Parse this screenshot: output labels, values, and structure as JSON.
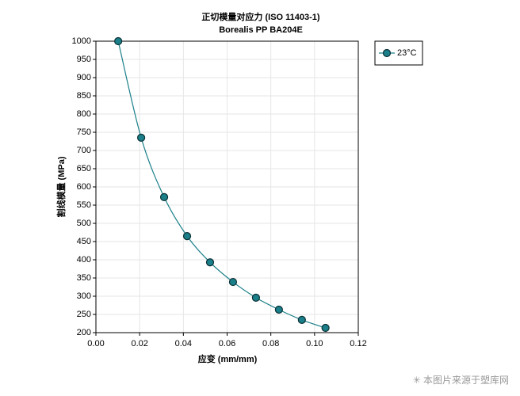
{
  "chart_data": {
    "type": "line",
    "title": "正切模量对应力 (ISO 11403-1)",
    "subtitle": "Borealis PP BA204E",
    "x_label": "应变 (mm/mm)",
    "y_label": "割线模量 (MPa)",
    "x": [
      0.0102,
      0.0207,
      0.0312,
      0.0417,
      0.0522,
      0.0627,
      0.0732,
      0.0837,
      0.0942,
      0.105
    ],
    "series": [
      {
        "name": "23°C",
        "color": "#1a7f89",
        "values": [
          1000,
          735,
          572,
          465,
          393,
          339,
          296,
          263,
          235,
          213
        ]
      }
    ],
    "xlim": [
      0,
      0.12
    ],
    "xticks": [
      {
        "value": 0,
        "label": "0.00"
      },
      {
        "value": 0.02,
        "label": "0.02"
      },
      {
        "value": 0.04,
        "label": "0.04"
      },
      {
        "value": 0.06,
        "label": "0.06"
      },
      {
        "value": 0.08,
        "label": "0.08"
      },
      {
        "value": 0.1,
        "label": "0.10"
      },
      {
        "value": 0.12,
        "label": "0.12"
      }
    ],
    "ylim": [
      200,
      1000
    ],
    "yticks": [
      200,
      250,
      300,
      350,
      400,
      450,
      500,
      550,
      600,
      650,
      700,
      750,
      800,
      850,
      900,
      950,
      1000
    ],
    "grid": true,
    "legend": "right",
    "watermark": "✳ 本图片来源于塑库网"
  }
}
